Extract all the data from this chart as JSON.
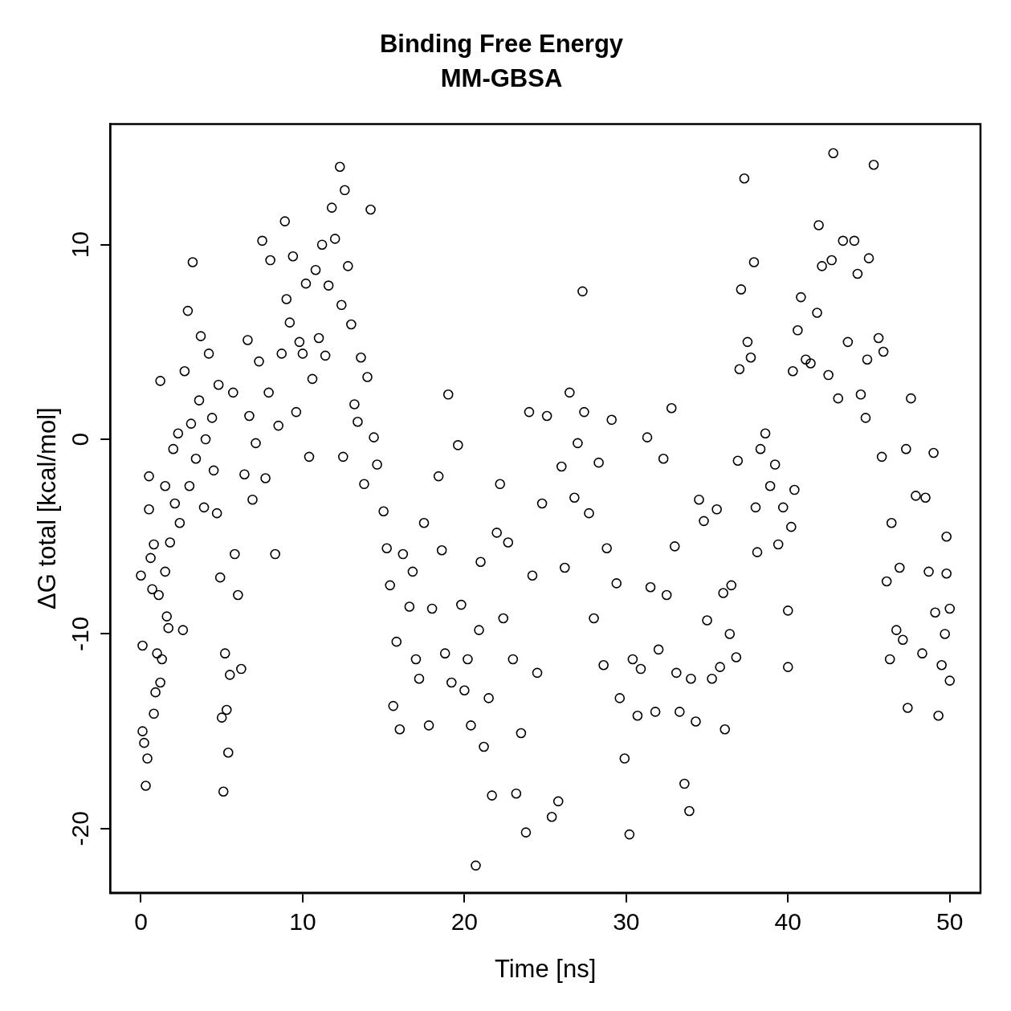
{
  "chart_data": {
    "type": "scatter",
    "title": "Binding Free Energy",
    "subtitle": "MM-GBSA",
    "xlabel": "Time [ns]",
    "ylabel": "ΔG total [kcal/mol]",
    "xlim": [
      -1.9,
      51.9
    ],
    "ylim": [
      -23.3,
      16.2
    ],
    "xticks": [
      0,
      10,
      20,
      30,
      40,
      50
    ],
    "yticks": [
      -20,
      -10,
      0,
      10
    ],
    "grid": false,
    "legend": false,
    "marker": "circle",
    "series": [
      {
        "color": "#000000",
        "x": [
          0,
          0.1,
          0.1,
          0.2,
          0.3,
          0.4,
          0.5,
          0.5,
          0.6,
          0.7,
          0.8,
          0.8,
          0.9,
          1,
          1.1,
          1.2,
          1.2,
          1.3,
          1.5,
          1.5,
          1.6,
          1.7,
          1.8,
          2,
          2.1,
          2.3,
          2.4,
          2.6,
          2.7,
          2.9,
          3,
          3.1,
          3.2,
          3.4,
          3.6,
          3.7,
          3.9,
          4,
          4.2,
          4.4,
          4.5,
          4.7,
          4.8,
          4.9,
          5,
          5.1,
          5.2,
          5.3,
          5.4,
          5.5,
          5.7,
          5.8,
          6,
          6.2,
          6.4,
          6.6,
          6.7,
          6.9,
          7.1,
          7.3,
          7.5,
          7.7,
          7.9,
          8,
          8.3,
          8.5,
          8.7,
          8.9,
          9,
          9.2,
          9.4,
          9.6,
          9.8,
          10,
          10.2,
          10.4,
          10.6,
          10.8,
          11,
          11.2,
          11.4,
          11.6,
          11.8,
          12,
          12.3,
          12.4,
          12.5,
          12.6,
          12.8,
          13,
          13.2,
          13.4,
          13.6,
          13.8,
          14,
          14.2,
          14.4,
          14.6,
          15,
          15.2,
          15.4,
          15.6,
          15.8,
          16,
          16.2,
          16.6,
          16.8,
          17,
          17.2,
          17.5,
          17.8,
          18,
          18.4,
          18.6,
          18.8,
          19,
          19.2,
          19.6,
          19.8,
          20,
          20.2,
          20.4,
          20.7,
          20.9,
          21,
          21.2,
          21.5,
          21.7,
          22,
          22.2,
          22.4,
          22.7,
          23,
          23.2,
          23.5,
          23.8,
          24,
          24.2,
          24.5,
          24.8,
          25.1,
          25.4,
          25.8,
          26,
          26.2,
          26.5,
          26.8,
          27,
          27.3,
          27.4,
          27.7,
          28,
          28.3,
          28.6,
          28.8,
          29.1,
          29.4,
          29.6,
          29.9,
          30.2,
          30.4,
          30.7,
          30.9,
          31.3,
          31.5,
          31.8,
          32,
          32.3,
          32.5,
          32.8,
          33,
          33.1,
          33.3,
          33.6,
          33.9,
          34,
          34.3,
          34.5,
          34.8,
          35,
          35.3,
          35.6,
          35.8,
          36,
          36.1,
          36.4,
          36.5,
          36.8,
          36.9,
          37,
          37.1,
          37.3,
          37.5,
          37.7,
          37.9,
          38,
          38.1,
          38.3,
          38.6,
          38.9,
          39.2,
          39.4,
          39.7,
          40,
          40,
          40.2,
          40.4,
          40.3,
          40.6,
          40.8,
          41.1,
          41.4,
          41.8,
          41.9,
          42.1,
          42.5,
          42.7,
          42.8,
          43.1,
          43.4,
          43.7,
          44.1,
          44.3,
          44.5,
          44.8,
          44.9,
          45,
          45.3,
          45.6,
          45.8,
          45.9,
          46.1,
          46.3,
          46.4,
          46.7,
          46.9,
          47.1,
          47.3,
          47.4,
          47.6,
          47.9,
          48.3,
          48.5,
          48.7,
          49,
          49.1,
          49.3,
          49.5,
          49.7,
          49.8,
          50,
          50,
          49.8
        ],
        "values": [
          -7,
          -10.6,
          -15,
          -15.6,
          -17.8,
          -16.4,
          -1.9,
          -3.6,
          -6.1,
          -7.7,
          -5.4,
          -14.1,
          -13,
          -11,
          -8,
          3,
          -12.5,
          -11.3,
          -2.4,
          -6.8,
          -9.1,
          -9.7,
          -5.3,
          -0.5,
          -3.3,
          0.3,
          -4.3,
          -9.8,
          3.5,
          6.6,
          -2.4,
          0.8,
          9.1,
          -1,
          2,
          5.3,
          -3.5,
          0,
          4.4,
          1.1,
          -1.6,
          -3.8,
          2.8,
          -7.1,
          -14.3,
          -18.1,
          -11,
          -13.9,
          -16.1,
          -12.1,
          2.4,
          -5.9,
          -8,
          -11.8,
          -1.8,
          5.1,
          1.2,
          -3.1,
          -0.2,
          4,
          10.2,
          -2,
          2.4,
          9.2,
          -5.9,
          0.7,
          4.4,
          11.2,
          7.2,
          6,
          9.4,
          1.4,
          5,
          4.4,
          8,
          -0.9,
          3.1,
          8.7,
          5.2,
          10,
          4.3,
          7.9,
          11.9,
          10.3,
          14,
          6.9,
          -0.9,
          12.8,
          8.9,
          5.9,
          1.8,
          0.9,
          4.2,
          -2.3,
          3.2,
          11.8,
          0.1,
          -1.3,
          -3.7,
          -5.6,
          -7.5,
          -13.7,
          -10.4,
          -14.9,
          -5.9,
          -8.6,
          -6.8,
          -11.3,
          -12.3,
          -4.3,
          -14.7,
          -8.7,
          -1.9,
          -5.7,
          -11,
          2.3,
          -12.5,
          -0.3,
          -8.5,
          -12.9,
          -11.3,
          -14.7,
          -21.9,
          -9.8,
          -6.3,
          -15.8,
          -13.3,
          -18.3,
          -4.8,
          -2.3,
          -9.2,
          -5.3,
          -11.3,
          -18.2,
          -15.1,
          -20.2,
          1.4,
          -7,
          -12,
          -3.3,
          1.2,
          -19.4,
          -18.6,
          -1.4,
          -6.6,
          2.4,
          -3,
          -0.2,
          7.6,
          1.4,
          -3.8,
          -9.2,
          -1.2,
          -11.6,
          -5.6,
          1,
          -7.4,
          -13.3,
          -16.4,
          -20.3,
          -11.3,
          -14.2,
          -11.8,
          0.1,
          -7.6,
          -14,
          -10.8,
          -1,
          -8,
          1.6,
          -5.5,
          -12,
          -14,
          -17.7,
          -19.1,
          -12.3,
          -14.5,
          -3.1,
          -4.2,
          -9.3,
          -12.3,
          -3.6,
          -11.7,
          -7.9,
          -14.9,
          -10,
          -7.5,
          -11.2,
          -1.1,
          3.6,
          7.7,
          13.4,
          5,
          4.2,
          9.1,
          -3.5,
          -5.8,
          -0.5,
          0.3,
          -2.4,
          -1.3,
          -5.4,
          -3.5,
          -11.7,
          -8.8,
          -4.5,
          -2.6,
          3.5,
          5.6,
          7.3,
          4.1,
          3.9,
          6.5,
          11,
          8.9,
          3.3,
          9.2,
          14.7,
          2.1,
          10.2,
          5,
          10.2,
          8.5,
          2.3,
          1.1,
          4.1,
          9.3,
          14.1,
          5.2,
          -0.9,
          4.5,
          -7.3,
          -11.3,
          -4.3,
          -9.8,
          -6.6,
          -10.3,
          -0.5,
          -13.8,
          2.1,
          -2.9,
          -11,
          -3,
          -6.8,
          -0.7,
          -8.9,
          -14.2,
          -11.6,
          -10,
          -5,
          -8.7,
          -12.4,
          -6.9
        ]
      }
    ]
  }
}
